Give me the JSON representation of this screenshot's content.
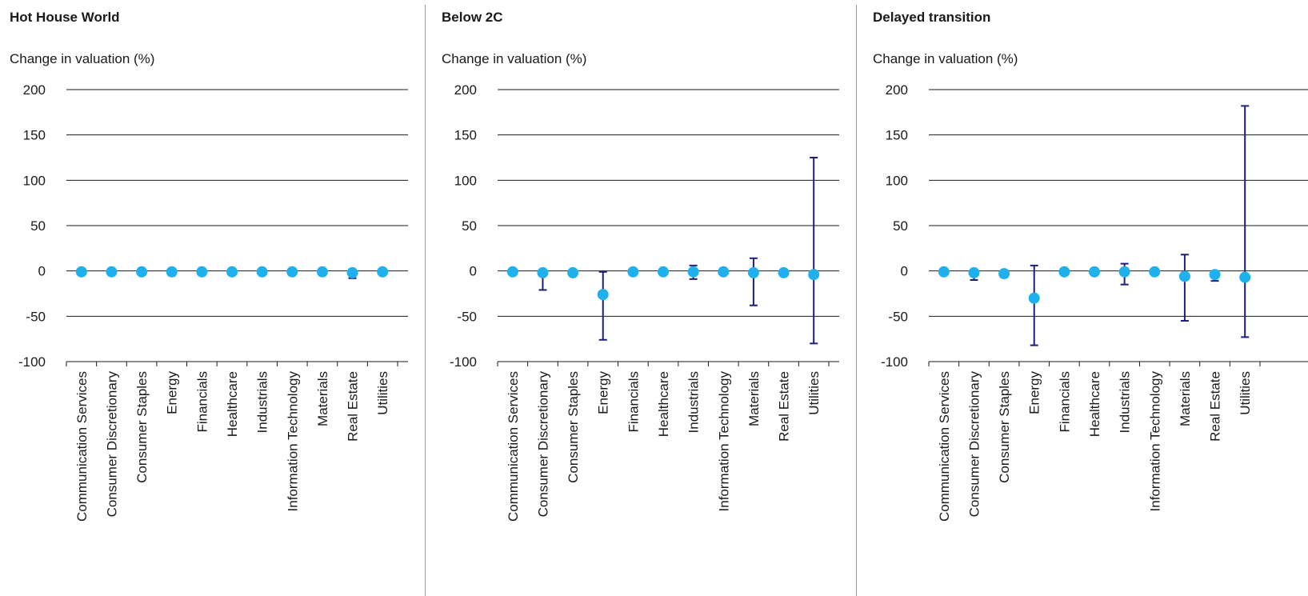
{
  "colors": {
    "marker": "#1fb1ee",
    "error_bar": "#1d1f7a",
    "grid": "#1a1a1a",
    "divider": "#9a9a9a"
  },
  "chart_data": [
    {
      "type": "scatter",
      "title": "Hot House World",
      "ylabel": "Change in valuation (%)",
      "ylim": [
        -100,
        200
      ],
      "yticks": [
        200,
        150,
        100,
        50,
        0,
        -50,
        -100
      ],
      "grid": true,
      "categories": [
        "Communication Services",
        "Consumer Discretionary",
        "Consumer Staples",
        "Energy",
        "Financials",
        "Healthcare",
        "Industrials",
        "Information Technology",
        "Materials",
        "Real Estate",
        "Utilities"
      ],
      "values": [
        -1,
        -1,
        -1,
        -1,
        -1,
        -1,
        -1,
        -1,
        -1,
        -2,
        -1
      ],
      "error_low": [
        -1,
        -1,
        -1,
        -5,
        -1,
        -1,
        -1,
        -1,
        -1,
        -8,
        -1
      ],
      "error_high": [
        -1,
        -1,
        -1,
        1,
        -1,
        -1,
        -1,
        -1,
        -1,
        0,
        -1
      ]
    },
    {
      "type": "scatter",
      "title": "Below 2C",
      "ylabel": "Change in valuation (%)",
      "ylim": [
        -100,
        200
      ],
      "yticks": [
        200,
        150,
        100,
        50,
        0,
        -50,
        -100
      ],
      "grid": true,
      "categories": [
        "Communication Services",
        "Consumer Discretionary",
        "Consumer Staples",
        "Energy",
        "Financials",
        "Healthcare",
        "Industrials",
        "Information Technology",
        "Materials",
        "Real Estate",
        "Utilities"
      ],
      "values": [
        -1,
        -2,
        -2,
        -26,
        -1,
        -1,
        -1,
        -1,
        -2,
        -2,
        -4
      ],
      "error_low": [
        -1,
        -21,
        -2,
        -76,
        -1,
        -1,
        -9,
        -1,
        -38,
        -2,
        -80
      ],
      "error_high": [
        -1,
        -1,
        -2,
        -1,
        -1,
        -1,
        6,
        -1,
        14,
        -2,
        125
      ]
    },
    {
      "type": "scatter",
      "title": "Delayed transition",
      "ylabel": "Change in valuation (%)",
      "ylim": [
        -100,
        200
      ],
      "yticks": [
        200,
        150,
        100,
        50,
        0,
        -50,
        -100
      ],
      "grid": true,
      "categories": [
        "Communication Services",
        "Consumer Discretionary",
        "Consumer Staples",
        "Energy",
        "Financials",
        "Healthcare",
        "Industrials",
        "Information Technology",
        "Materials",
        "Real Estate",
        "Utilities"
      ],
      "values": [
        -1,
        -2,
        -3,
        -30,
        -1,
        -1,
        -1,
        -1,
        -6,
        -4,
        -7
      ],
      "error_low": [
        -1,
        -10,
        -7,
        -82,
        -1,
        -1,
        -15,
        -1,
        -55,
        -11,
        -73
      ],
      "error_high": [
        -1,
        -1,
        -1,
        6,
        -1,
        -1,
        8,
        -1,
        18,
        -1,
        182
      ]
    }
  ]
}
